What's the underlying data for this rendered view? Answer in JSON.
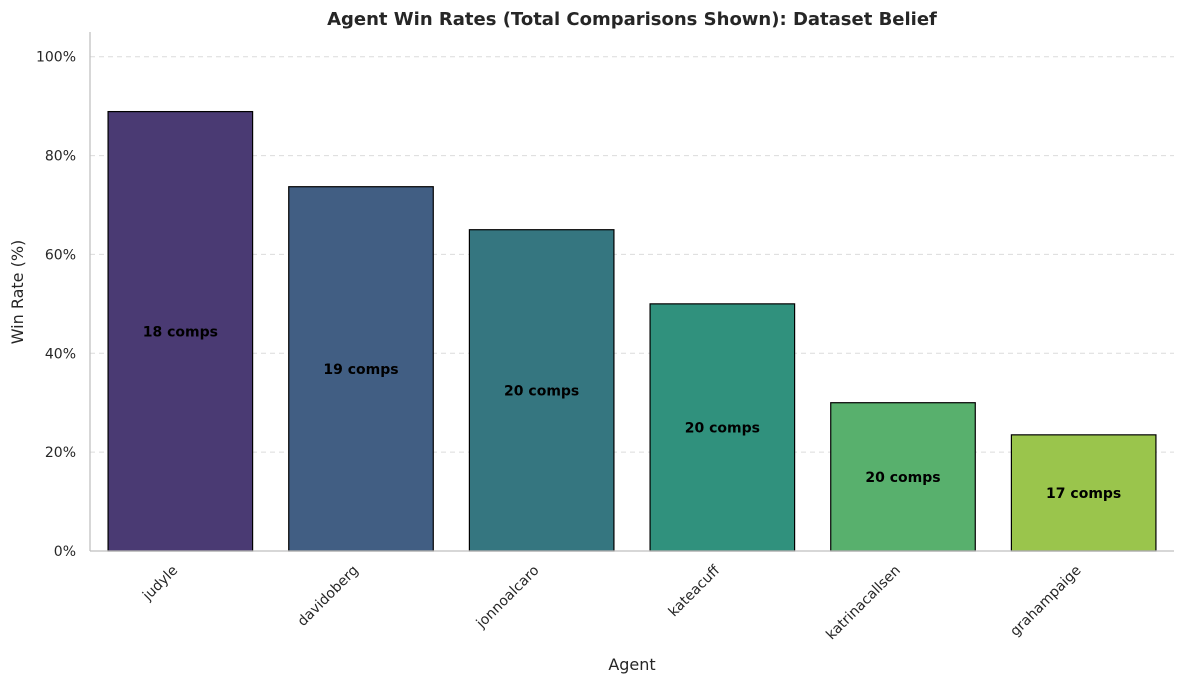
{
  "chart_data": {
    "type": "bar",
    "title": "Agent Win Rates (Total Comparisons Shown): Dataset Belief",
    "xlabel": "Agent",
    "ylabel": "Win Rate (%)",
    "ylim": [
      0,
      105
    ],
    "yticks": [
      0,
      20,
      40,
      60,
      80,
      100
    ],
    "ytick_labels": [
      "0%",
      "20%",
      "40%",
      "60%",
      "80%",
      "100%"
    ],
    "grid": "y-dashed",
    "categories": [
      "judyle",
      "davidoberg",
      "jonnoalcaro",
      "kateacuff",
      "katrinacallsen",
      "grahampaige"
    ],
    "values": [
      88.9,
      73.7,
      65.0,
      50.0,
      30.0,
      23.5
    ],
    "bar_labels": [
      "18 comps",
      "19 comps",
      "20 comps",
      "20 comps",
      "20 comps",
      "17 comps"
    ],
    "colors": [
      "#4a3a73",
      "#415e83",
      "#357680",
      "#30917d",
      "#58b06d",
      "#9ac54c"
    ]
  }
}
